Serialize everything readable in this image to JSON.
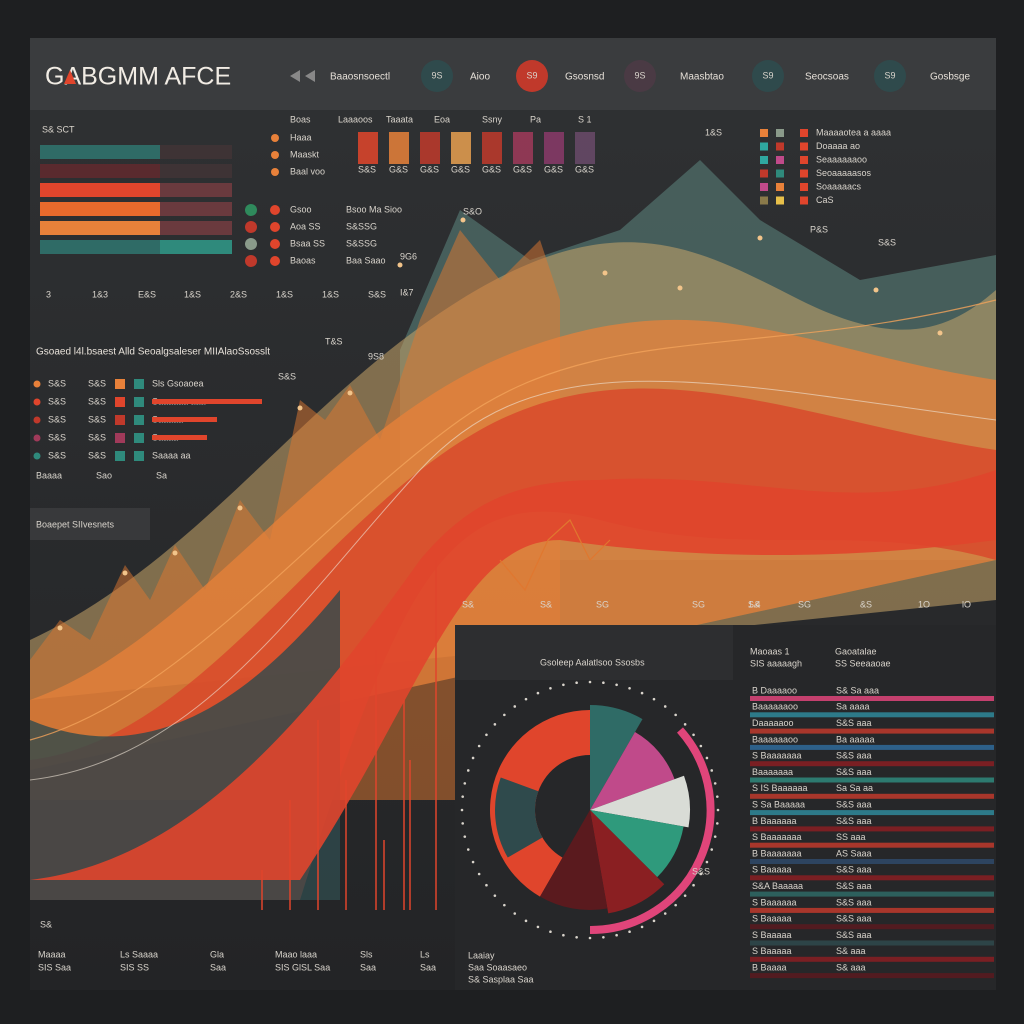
{
  "header": {
    "title": "GABGMM AFCE",
    "nav": [
      {
        "icon": "",
        "label": "Baaosnsoectl"
      },
      {
        "icon": "9S",
        "label": "Aioo"
      },
      {
        "icon": "S9",
        "label": "Gsosnsd"
      },
      {
        "icon": "9S",
        "label": "Maasbtao"
      },
      {
        "icon": "S9",
        "label": "Seocsoas"
      },
      {
        "icon": "S9",
        "label": "Gosbsge"
      }
    ]
  },
  "top_left": {
    "title": "S& SCT",
    "axis": [
      "3",
      "1&3",
      "E&S",
      "1&S",
      "2&S",
      "1&S",
      "1&S",
      "S&S"
    ]
  },
  "mini_bars": {
    "labels": [
      "Boas",
      "Laaaoos",
      "Taaata",
      "Eoa",
      "Ssny",
      "Pa",
      "S 1"
    ],
    "axis": [
      "S&S",
      "G&S",
      "G&S",
      "G&S",
      "G&S",
      "G&S",
      "G&S",
      "G&S"
    ]
  },
  "legend_mid": [
    "Haaa",
    "Maaskt",
    "Baal voo"
  ],
  "dots_list": [
    {
      "a": "Gsoo",
      "b": "Bsoo Ma Sioo"
    },
    {
      "a": "Aoa SS",
      "b": "S&SSG"
    },
    {
      "a": "Bsaa SS",
      "b": "S&SSG"
    },
    {
      "a": "Baoas",
      "b": "Baa Saao"
    }
  ],
  "peaks": [
    "S&O",
    "9G6",
    "I&7",
    "T&S",
    "9S8",
    "S&S",
    "1&S",
    "P&S",
    "S&S"
  ],
  "section": {
    "title": "Gsoaed l4l.bsaest Alld Seoalgsaleser MIIAlaoSsosslt",
    "rows": [
      {
        "a": "S&S",
        "b": "S&S",
        "c": "Sls Gsoaoea"
      },
      {
        "a": "S&S",
        "b": "S&S",
        "c": "Saaaaaa aaa"
      },
      {
        "a": "S&S",
        "b": "S&S",
        "c": "Saaaaa"
      },
      {
        "a": "S&S",
        "b": "S&S",
        "c": "Saaaa"
      },
      {
        "a": "S&S",
        "b": "S&S",
        "c": "Saaaa aa"
      }
    ],
    "foot": [
      "Baaaa",
      "Sao",
      "Sa"
    ]
  },
  "panel_label": "Boaepet SIIvesnets",
  "right_legend": [
    "Maaaaotea a aaaa",
    "Doaaaa ao",
    "Seaaaaaaoo",
    "Seoaaaaasos",
    "Soaaaaacs",
    "CaS"
  ],
  "x_axis": [
    "S&",
    "S&",
    "SG",
    "SG",
    "S&",
    "SG",
    "1.4",
    "&S",
    "1O",
    "lO",
    "S&"
  ],
  "pie_panel": {
    "title": "Gsoleep Aalatlsoo Ssosbs",
    "col1": [
      "Maoaas 1",
      "SIS aaaaagh"
    ],
    "col2": [
      "Gaoatalae",
      "SS Seeaaoae"
    ],
    "legend": [
      "Laaiay",
      "Saa Soaasaeo",
      "S& Sasplaa Saa"
    ],
    "badge": "S&S"
  },
  "table": {
    "rows": [
      [
        "B Daaaaoo",
        "S& Sa aaa"
      ],
      [
        "Baaaaaaoo",
        "Sa aaaa"
      ],
      [
        "Daaaaaoo",
        "S&S aaa"
      ],
      [
        "Baaaaaaoo",
        "Ba aaaaa"
      ],
      [
        "S Baaaaaaa",
        "S&S aaa"
      ],
      [
        "Baaaaaaa",
        "S&S aaa"
      ],
      [
        "S IS Baaaaaa",
        "Sa Sa aa"
      ],
      [
        "S Sa Baaaaa",
        "S&S aaa"
      ],
      [
        "B Baaaaaa",
        "S&S aaa"
      ],
      [
        "S Baaaaaaa",
        "SS aaa"
      ],
      [
        "B Baaaaaaa",
        "AS Saaa"
      ],
      [
        "S Baaaaa",
        "S&S aaa"
      ],
      [
        "S&A Baaaaa",
        "S&S aaa"
      ],
      [
        "S Baaaaaa",
        "S&S aaa"
      ],
      [
        "S Baaaaa",
        "S&S aaa"
      ],
      [
        "S Baaaaa",
        "S&S aaa"
      ],
      [
        "S Baaaaa",
        "S& aaa"
      ],
      [
        "B Baaaa",
        "S& aaa"
      ]
    ]
  },
  "bottom": [
    {
      "a": "Maaaa",
      "b": "SIS Saa"
    },
    {
      "a": "Ls Saaaa",
      "b": "SIS SS"
    },
    {
      "a": "Gla",
      "b": "Saa"
    },
    {
      "a": "Maao laaa",
      "b": "SIS GlSL Saa"
    },
    {
      "a": "Sls",
      "b": "Saa"
    },
    {
      "a": "Ls",
      "b": "Saa"
    }
  ]
}
